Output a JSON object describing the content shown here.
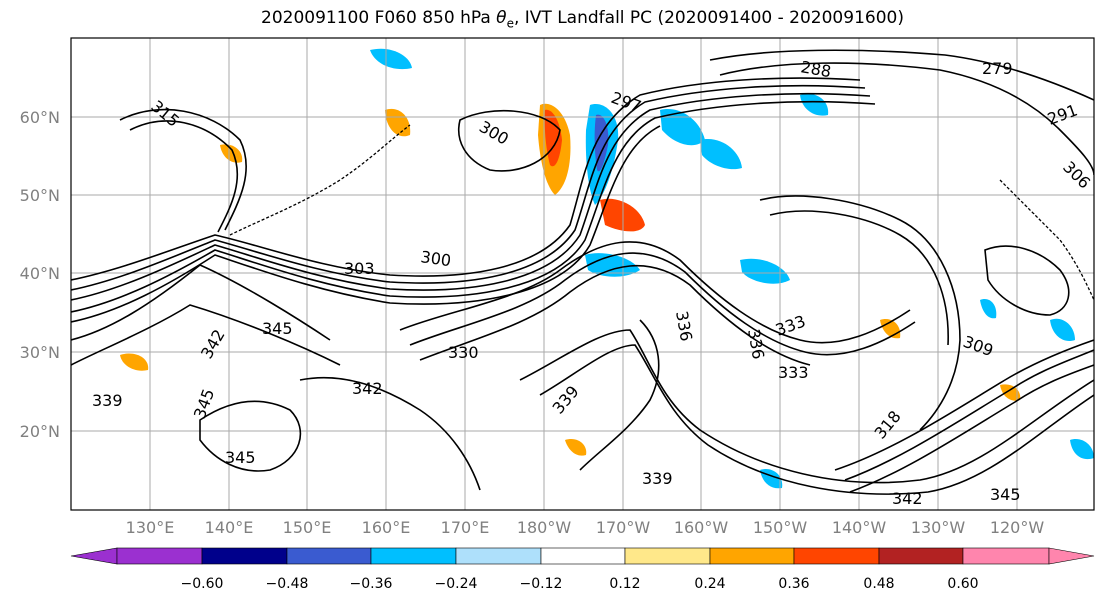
{
  "title": {
    "prefix": "2020091100 F060 850 hPa ",
    "theta_symbol": "θ",
    "theta_sub": "e",
    "suffix": ", IVT Landfall PC (2020091400 - 2020091600)"
  },
  "map": {
    "lat_labels": [
      "60°N",
      "50°N",
      "40°N",
      "30°N",
      "20°N"
    ],
    "lon_labels": [
      "130°E",
      "140°E",
      "150°E",
      "160°E",
      "170°E",
      "180°W",
      "170°W",
      "160°W",
      "150°W",
      "140°W",
      "130°W",
      "120°W"
    ],
    "contour_labels": [
      "315",
      "288",
      "279",
      "297",
      "300",
      "300",
      "303",
      "345",
      "342",
      "330",
      "342",
      "339",
      "345",
      "336",
      "336",
      "333",
      "333",
      "339",
      "339",
      "342",
      "345",
      "345",
      "309",
      "318",
      "291",
      "306"
    ],
    "colors": {
      "purple": "#9b30d0",
      "navy": "#00008b",
      "blue": "#3a5bd0",
      "deepsky": "#00bfff",
      "lightblue": "#aee0fb",
      "white": "#ffffff",
      "khaki": "#ffe88a",
      "orange": "#ffa500",
      "orangered": "#ff4500",
      "firebrick": "#b22222",
      "pink": "#ff85ad"
    }
  },
  "colorbar": {
    "tick_labels": [
      "−0.60",
      "−0.48",
      "−0.36",
      "−0.24",
      "−0.12",
      "0.12",
      "0.24",
      "0.36",
      "0.48",
      "0.60"
    ]
  }
}
